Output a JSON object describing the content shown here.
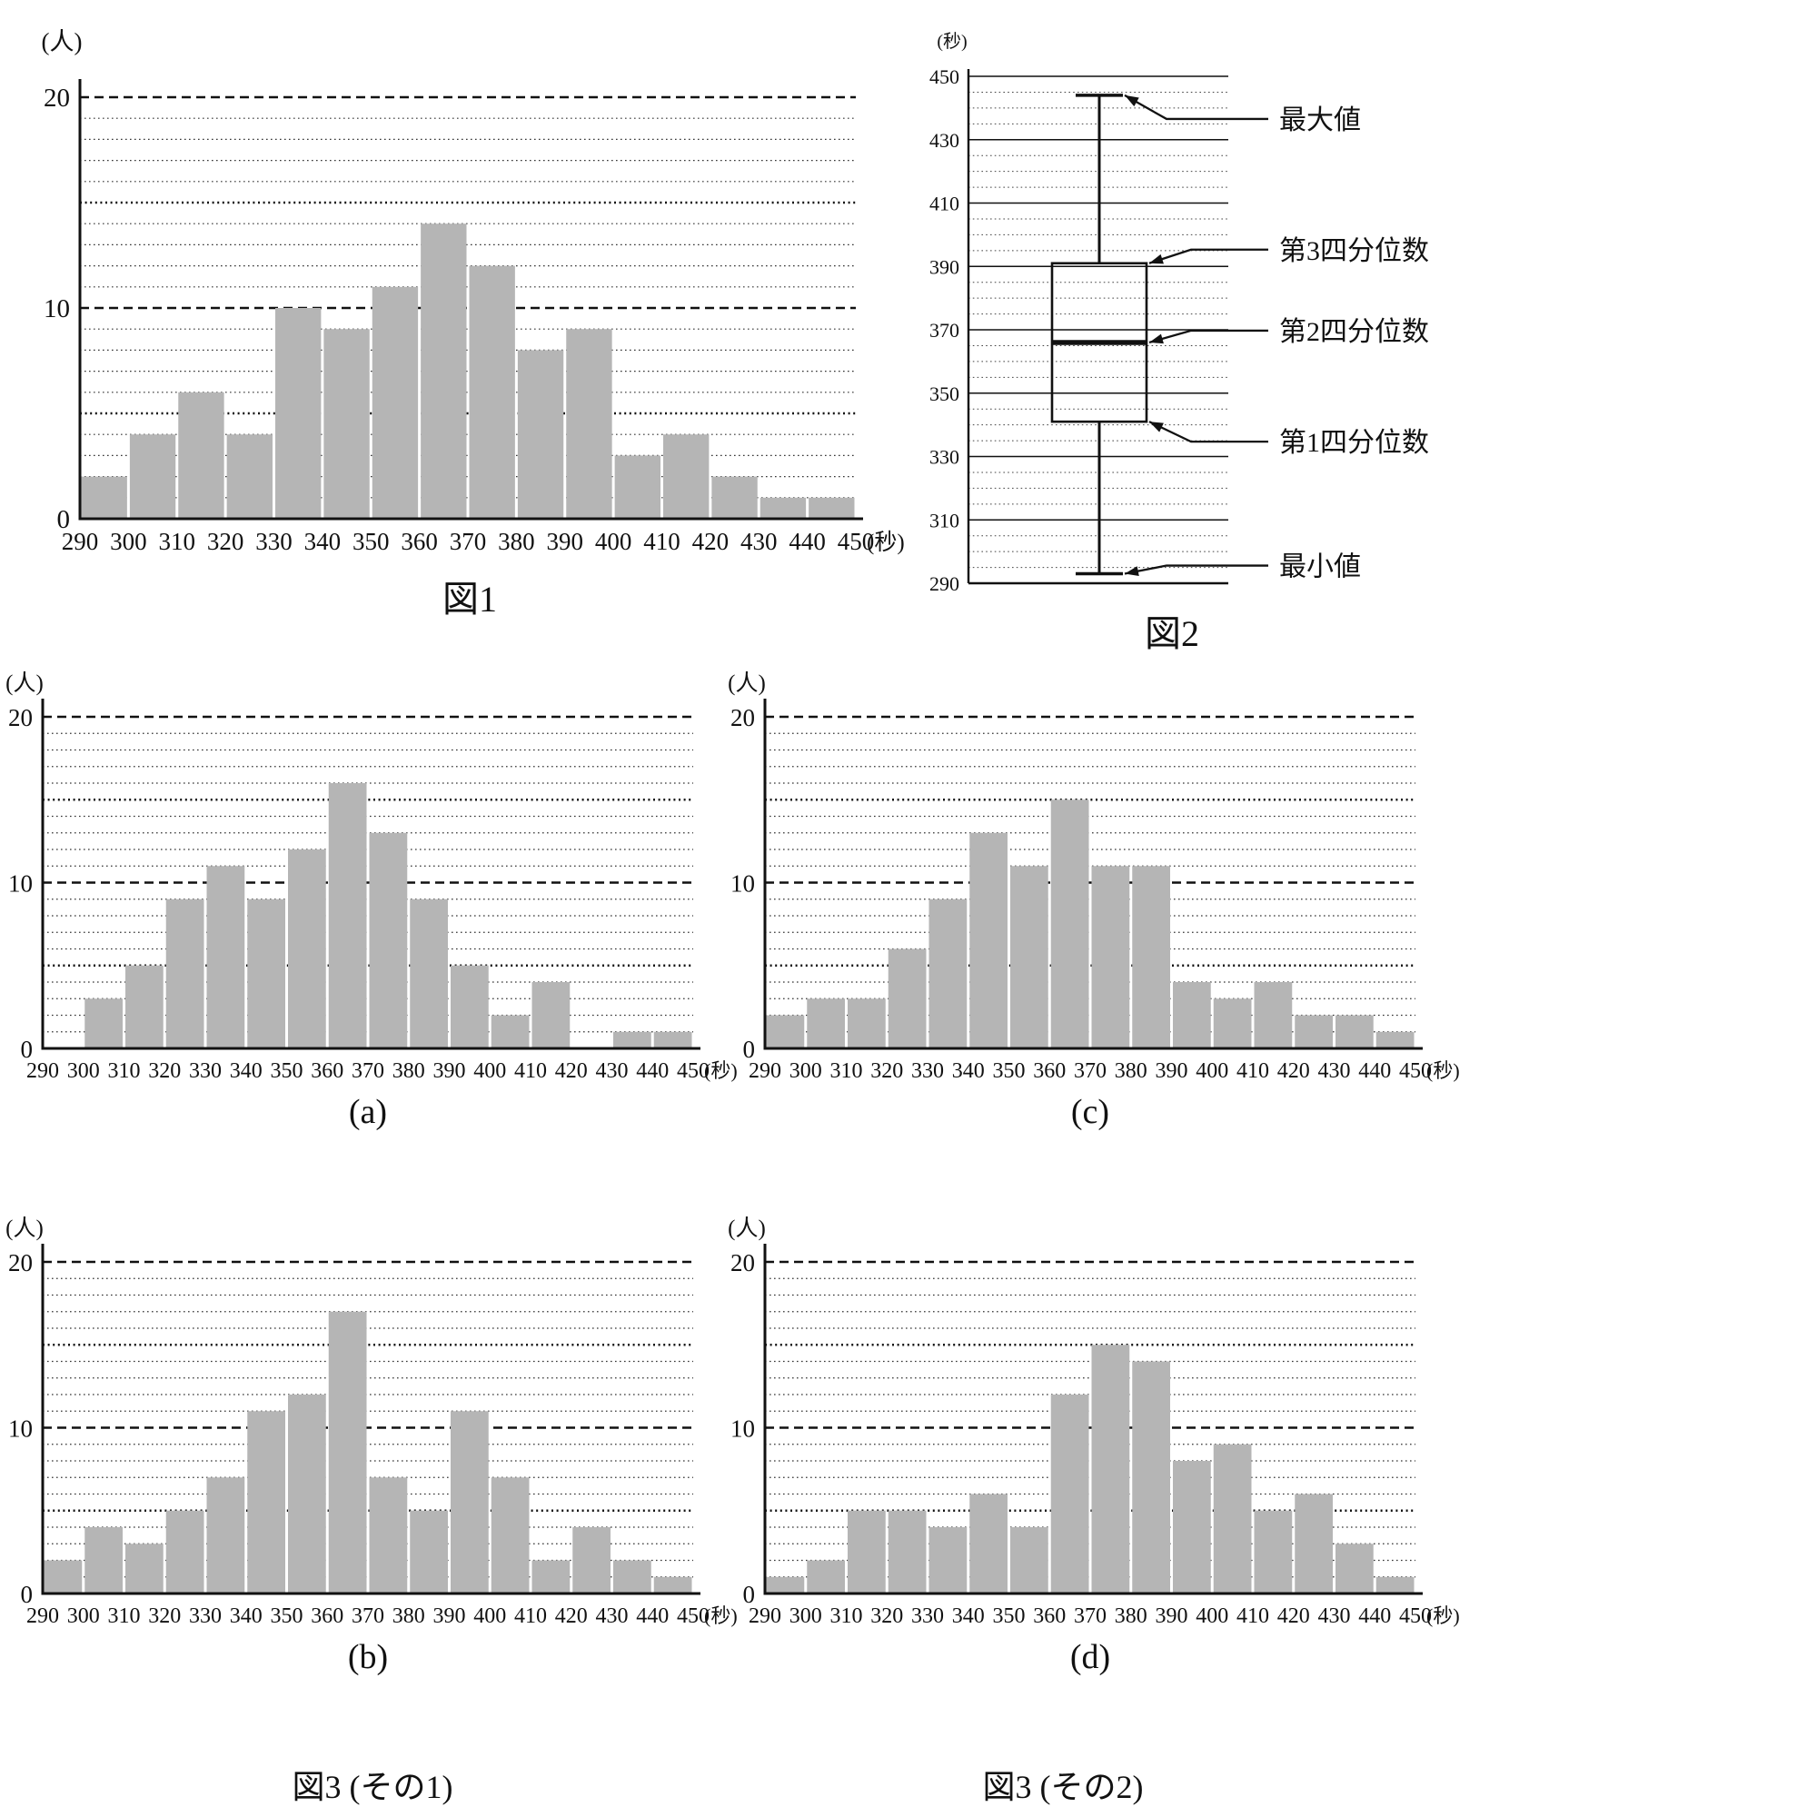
{
  "style": {
    "bar_fill": "#b5b5b5",
    "axis_color": "#111111",
    "background": "#ffffff"
  },
  "captions": {
    "fig1": "図1",
    "fig2": "図2",
    "a": "(a)",
    "b": "(b)",
    "c": "(c)",
    "d": "(d)",
    "fig3_1": "図3 (その1)",
    "fig3_2": "図3 (その2)"
  },
  "chart_data": [
    {
      "id": "fig1",
      "type": "bar",
      "title": "図1",
      "ylabel": "(人)",
      "xlabel": "(秒)",
      "ylim": [
        0,
        20
      ],
      "y_ticks": [
        0,
        10,
        20
      ],
      "x_ticks": [
        290,
        300,
        310,
        320,
        330,
        340,
        350,
        360,
        370,
        380,
        390,
        400,
        410,
        420,
        430,
        440,
        450
      ],
      "bin_width": 10,
      "values": [
        2,
        4,
        6,
        4,
        10,
        9,
        11,
        14,
        12,
        8,
        9,
        3,
        4,
        2,
        1,
        1
      ]
    },
    {
      "id": "a",
      "type": "bar",
      "title": "(a)",
      "ylabel": "(人)",
      "xlabel": "(秒)",
      "ylim": [
        0,
        20
      ],
      "y_ticks": [
        0,
        10,
        20
      ],
      "x_ticks": [
        290,
        300,
        310,
        320,
        330,
        340,
        350,
        360,
        370,
        380,
        390,
        400,
        410,
        420,
        430,
        440,
        450
      ],
      "bin_width": 10,
      "values": [
        0,
        3,
        5,
        9,
        11,
        9,
        12,
        16,
        13,
        9,
        5,
        2,
        4,
        0,
        1,
        1
      ]
    },
    {
      "id": "b",
      "type": "bar",
      "title": "(b)",
      "ylabel": "(人)",
      "xlabel": "(秒)",
      "ylim": [
        0,
        20
      ],
      "y_ticks": [
        0,
        10,
        20
      ],
      "x_ticks": [
        290,
        300,
        310,
        320,
        330,
        340,
        350,
        360,
        370,
        380,
        390,
        400,
        410,
        420,
        430,
        440,
        450
      ],
      "bin_width": 10,
      "values": [
        2,
        4,
        3,
        5,
        7,
        11,
        12,
        17,
        7,
        5,
        11,
        7,
        2,
        4,
        2,
        1
      ]
    },
    {
      "id": "c",
      "type": "bar",
      "title": "(c)",
      "ylabel": "(人)",
      "xlabel": "(秒)",
      "ylim": [
        0,
        20
      ],
      "y_ticks": [
        0,
        10,
        20
      ],
      "x_ticks": [
        290,
        300,
        310,
        320,
        330,
        340,
        350,
        360,
        370,
        380,
        390,
        400,
        410,
        420,
        430,
        440,
        450
      ],
      "bin_width": 10,
      "values": [
        2,
        3,
        3,
        6,
        9,
        13,
        11,
        15,
        11,
        11,
        4,
        3,
        4,
        2,
        2,
        1
      ]
    },
    {
      "id": "d",
      "type": "bar",
      "title": "(d)",
      "ylabel": "(人)",
      "xlabel": "(秒)",
      "ylim": [
        0,
        20
      ],
      "y_ticks": [
        0,
        10,
        20
      ],
      "x_ticks": [
        290,
        300,
        310,
        320,
        330,
        340,
        350,
        360,
        370,
        380,
        390,
        400,
        410,
        420,
        430,
        440,
        450
      ],
      "bin_width": 10,
      "values": [
        1,
        2,
        5,
        5,
        4,
        6,
        4,
        12,
        15,
        14,
        8,
        9,
        5,
        6,
        3,
        1
      ]
    },
    {
      "id": "fig2",
      "type": "boxplot",
      "title": "図2",
      "unit": "(秒)",
      "axis_min": 290,
      "axis_max": 450,
      "major_step": 20,
      "minor_step": 5,
      "axis_ticks": [
        290,
        310,
        330,
        350,
        370,
        390,
        410,
        430,
        450
      ],
      "stats": {
        "min": 293,
        "q1": 341,
        "median": 366,
        "q3": 391,
        "max": 444
      },
      "annotations": [
        {
          "target": "max",
          "label": "最大値"
        },
        {
          "target": "q3",
          "label": "第3四分位数"
        },
        {
          "target": "median",
          "label": "第2四分位数"
        },
        {
          "target": "q1",
          "label": "第1四分位数"
        },
        {
          "target": "min",
          "label": "最小値"
        }
      ]
    }
  ]
}
